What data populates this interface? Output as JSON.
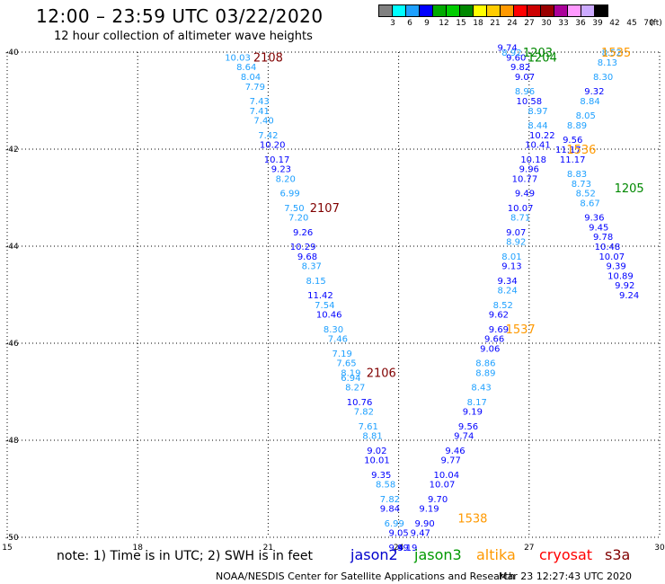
{
  "header": {
    "title": "12:00 – 23:59 UTC 03/22/2020",
    "subtitle": "12 hour collection of altimeter wave heights",
    "units": "(ft)"
  },
  "colorbar": {
    "colors": [
      "#808080",
      "#00ffff",
      "#1ea0ff",
      "#0000ff",
      "#00aa00",
      "#00cc00",
      "#008800",
      "#ffff00",
      "#ffcc00",
      "#ff9900",
      "#ff0000",
      "#cc0000",
      "#990000",
      "#aa0099",
      "#ff99ff",
      "#ccaaff",
      "#000000"
    ],
    "labels": [
      "3",
      "6",
      "9",
      "12",
      "15",
      "18",
      "21",
      "24",
      "27",
      "30",
      "33",
      "36",
      "39",
      "42",
      "45",
      "70"
    ]
  },
  "chart_data": {
    "type": "scatter",
    "xlim": [
      15,
      30
    ],
    "ylim": [
      -50,
      -40
    ],
    "x_ticks": [
      "15",
      "18",
      "21",
      "24",
      "27",
      "30"
    ],
    "y_ticks": [
      "-40",
      "-42",
      "-44",
      "-46",
      "-48",
      "-50"
    ],
    "grid": true,
    "tracks": [
      {
        "label": "2108",
        "satellite": "s3a",
        "color": "#800000",
        "x": 21,
        "y": -40.1
      },
      {
        "label": "2107",
        "satellite": "s3a",
        "color": "#800000",
        "x": 22.3,
        "y": -43.2
      },
      {
        "label": "2106",
        "satellite": "s3a",
        "color": "#800000",
        "x": 23.6,
        "y": -46.6
      },
      {
        "label": "1203",
        "satellite": "jason3",
        "color": "#008800",
        "x": 27.2,
        "y": -40.0
      },
      {
        "label": "1204",
        "satellite": "jason3",
        "color": "#008800",
        "x": 27.3,
        "y": -40.1
      },
      {
        "label": "1205",
        "satellite": "jason3",
        "color": "#008800",
        "x": 29.3,
        "y": -42.8
      },
      {
        "label": "1535",
        "satellite": "altika",
        "color": "#ff9900",
        "x": 29.0,
        "y": -40.0
      },
      {
        "label": "1536",
        "satellite": "altika",
        "color": "#ff9900",
        "x": 28.2,
        "y": -42.0
      },
      {
        "label": "1537",
        "satellite": "altika",
        "color": "#ff9900",
        "x": 26.8,
        "y": -45.7
      },
      {
        "label": "1538",
        "satellite": "altika",
        "color": "#ff9900",
        "x": 25.7,
        "y": -49.6
      }
    ],
    "points": [
      {
        "x": 20.3,
        "y": -40.1,
        "v": "10.03",
        "c": "#1ea0ff"
      },
      {
        "x": 20.5,
        "y": -40.3,
        "v": "8.64",
        "c": "#1ea0ff"
      },
      {
        "x": 20.6,
        "y": -40.5,
        "v": "8.04",
        "c": "#1ea0ff"
      },
      {
        "x": 20.7,
        "y": -40.7,
        "v": "7.79",
        "c": "#1ea0ff"
      },
      {
        "x": 20.8,
        "y": -41.0,
        "v": "7.43",
        "c": "#1ea0ff"
      },
      {
        "x": 20.8,
        "y": -41.2,
        "v": "7.41",
        "c": "#1ea0ff"
      },
      {
        "x": 20.9,
        "y": -41.4,
        "v": "7.40",
        "c": "#1ea0ff"
      },
      {
        "x": 21.0,
        "y": -41.7,
        "v": "7.42",
        "c": "#1ea0ff"
      },
      {
        "x": 21.1,
        "y": -41.9,
        "v": "10.20",
        "c": "#0000ff"
      },
      {
        "x": 21.2,
        "y": -42.2,
        "v": "10.17",
        "c": "#0000ff"
      },
      {
        "x": 21.3,
        "y": -42.4,
        "v": "9.23",
        "c": "#0000ff"
      },
      {
        "x": 21.4,
        "y": -42.6,
        "v": "8.20",
        "c": "#1ea0ff"
      },
      {
        "x": 21.5,
        "y": -42.9,
        "v": "6.99",
        "c": "#1ea0ff"
      },
      {
        "x": 21.6,
        "y": -43.2,
        "v": "7.50",
        "c": "#1ea0ff"
      },
      {
        "x": 21.7,
        "y": -43.4,
        "v": "7.20",
        "c": "#1ea0ff"
      },
      {
        "x": 21.8,
        "y": -43.7,
        "v": "9.26",
        "c": "#0000ff"
      },
      {
        "x": 21.8,
        "y": -44.0,
        "v": "10.29",
        "c": "#0000ff"
      },
      {
        "x": 21.9,
        "y": -44.2,
        "v": "9.68",
        "c": "#0000ff"
      },
      {
        "x": 22.0,
        "y": -44.4,
        "v": "8.37",
        "c": "#1ea0ff"
      },
      {
        "x": 22.1,
        "y": -44.7,
        "v": "8.15",
        "c": "#1ea0ff"
      },
      {
        "x": 22.2,
        "y": -45.0,
        "v": "11.42",
        "c": "#0000ff"
      },
      {
        "x": 22.3,
        "y": -45.2,
        "v": "7.54",
        "c": "#1ea0ff"
      },
      {
        "x": 22.4,
        "y": -45.4,
        "v": "10.46",
        "c": "#0000ff"
      },
      {
        "x": 22.5,
        "y": -45.7,
        "v": "8.30",
        "c": "#1ea0ff"
      },
      {
        "x": 22.6,
        "y": -45.9,
        "v": "7.46",
        "c": "#1ea0ff"
      },
      {
        "x": 22.7,
        "y": -46.2,
        "v": "7.19",
        "c": "#1ea0ff"
      },
      {
        "x": 22.8,
        "y": -46.4,
        "v": "7.65",
        "c": "#1ea0ff"
      },
      {
        "x": 22.9,
        "y": -46.6,
        "v": "8.19",
        "c": "#1ea0ff"
      },
      {
        "x": 22.9,
        "y": -46.7,
        "v": "6.94",
        "c": "#1ea0ff"
      },
      {
        "x": 23.0,
        "y": -46.9,
        "v": "8.27",
        "c": "#1ea0ff"
      },
      {
        "x": 23.1,
        "y": -47.2,
        "v": "10.76",
        "c": "#0000ff"
      },
      {
        "x": 23.2,
        "y": -47.4,
        "v": "7.82",
        "c": "#1ea0ff"
      },
      {
        "x": 23.3,
        "y": -47.7,
        "v": "7.61",
        "c": "#1ea0ff"
      },
      {
        "x": 23.4,
        "y": -47.9,
        "v": "8.81",
        "c": "#1ea0ff"
      },
      {
        "x": 23.5,
        "y": -48.2,
        "v": "9.02",
        "c": "#0000ff"
      },
      {
        "x": 23.5,
        "y": -48.4,
        "v": "10.01",
        "c": "#0000ff"
      },
      {
        "x": 23.6,
        "y": -48.7,
        "v": "9.35",
        "c": "#0000ff"
      },
      {
        "x": 23.7,
        "y": -48.9,
        "v": "8.58",
        "c": "#1ea0ff"
      },
      {
        "x": 23.8,
        "y": -49.2,
        "v": "7.82",
        "c": "#1ea0ff"
      },
      {
        "x": 23.8,
        "y": -49.4,
        "v": "9.84",
        "c": "#0000ff"
      },
      {
        "x": 23.9,
        "y": -49.7,
        "v": "6.99",
        "c": "#1ea0ff"
      },
      {
        "x": 24.0,
        "y": -49.9,
        "v": "9.05",
        "c": "#0000ff"
      },
      {
        "x": 24.0,
        "y": -50.2,
        "v": "9.49",
        "c": "#0000ff"
      },
      {
        "x": 24.2,
        "y": -50.2,
        "v": "9.19",
        "c": "#0000ff"
      },
      {
        "x": 24.5,
        "y": -49.9,
        "v": "9.47",
        "c": "#0000ff"
      },
      {
        "x": 24.6,
        "y": -49.7,
        "v": "9.90",
        "c": "#0000ff"
      },
      {
        "x": 24.7,
        "y": -49.4,
        "v": "9.19",
        "c": "#0000ff"
      },
      {
        "x": 24.9,
        "y": -49.2,
        "v": "9.70",
        "c": "#0000ff"
      },
      {
        "x": 25.0,
        "y": -48.9,
        "v": "10.07",
        "c": "#0000ff"
      },
      {
        "x": 25.1,
        "y": -48.7,
        "v": "10.04",
        "c": "#0000ff"
      },
      {
        "x": 25.2,
        "y": -48.4,
        "v": "9.77",
        "c": "#0000ff"
      },
      {
        "x": 25.3,
        "y": -48.2,
        "v": "9.46",
        "c": "#0000ff"
      },
      {
        "x": 25.5,
        "y": -47.9,
        "v": "9.74",
        "c": "#0000ff"
      },
      {
        "x": 25.6,
        "y": -47.7,
        "v": "9.56",
        "c": "#0000ff"
      },
      {
        "x": 25.7,
        "y": -47.4,
        "v": "9.19",
        "c": "#0000ff"
      },
      {
        "x": 25.8,
        "y": -47.2,
        "v": "8.17",
        "c": "#1ea0ff"
      },
      {
        "x": 25.9,
        "y": -46.9,
        "v": "8.43",
        "c": "#1ea0ff"
      },
      {
        "x": 26.0,
        "y": -46.6,
        "v": "8.89",
        "c": "#1ea0ff"
      },
      {
        "x": 26.0,
        "y": -46.4,
        "v": "8.86",
        "c": "#1ea0ff"
      },
      {
        "x": 26.1,
        "y": -46.1,
        "v": "9.06",
        "c": "#0000ff"
      },
      {
        "x": 26.2,
        "y": -45.9,
        "v": "9.66",
        "c": "#0000ff"
      },
      {
        "x": 26.3,
        "y": -45.7,
        "v": "9.69",
        "c": "#0000ff"
      },
      {
        "x": 26.3,
        "y": -45.4,
        "v": "9.62",
        "c": "#0000ff"
      },
      {
        "x": 26.4,
        "y": -45.2,
        "v": "8.52",
        "c": "#1ea0ff"
      },
      {
        "x": 26.5,
        "y": -44.9,
        "v": "8.24",
        "c": "#1ea0ff"
      },
      {
        "x": 26.5,
        "y": -44.7,
        "v": "9.34",
        "c": "#0000ff"
      },
      {
        "x": 26.6,
        "y": -44.4,
        "v": "9.13",
        "c": "#0000ff"
      },
      {
        "x": 26.6,
        "y": -44.2,
        "v": "8.01",
        "c": "#1ea0ff"
      },
      {
        "x": 26.7,
        "y": -43.9,
        "v": "8.92",
        "c": "#1ea0ff"
      },
      {
        "x": 26.7,
        "y": -43.7,
        "v": "9.07",
        "c": "#0000ff"
      },
      {
        "x": 26.8,
        "y": -43.4,
        "v": "8.71",
        "c": "#1ea0ff"
      },
      {
        "x": 26.8,
        "y": -43.2,
        "v": "10.07",
        "c": "#0000ff"
      },
      {
        "x": 26.9,
        "y": -42.9,
        "v": "9.49",
        "c": "#0000ff"
      },
      {
        "x": 26.9,
        "y": -42.6,
        "v": "10.77",
        "c": "#0000ff"
      },
      {
        "x": 27.0,
        "y": -42.4,
        "v": "9.96",
        "c": "#0000ff"
      },
      {
        "x": 27.1,
        "y": -42.2,
        "v": "10.18",
        "c": "#0000ff"
      },
      {
        "x": 27.2,
        "y": -41.9,
        "v": "10.41",
        "c": "#0000ff"
      },
      {
        "x": 27.3,
        "y": -41.7,
        "v": "10.22",
        "c": "#0000ff"
      },
      {
        "x": 27.2,
        "y": -41.5,
        "v": "8.44",
        "c": "#1ea0ff"
      },
      {
        "x": 27.2,
        "y": -41.2,
        "v": "8.97",
        "c": "#1ea0ff"
      },
      {
        "x": 27.0,
        "y": -41.0,
        "v": "10.58",
        "c": "#0000ff"
      },
      {
        "x": 26.9,
        "y": -40.8,
        "v": "8.96",
        "c": "#1ea0ff"
      },
      {
        "x": 26.9,
        "y": -40.5,
        "v": "9.07",
        "c": "#0000ff"
      },
      {
        "x": 26.8,
        "y": -40.3,
        "v": "9.82",
        "c": "#0000ff"
      },
      {
        "x": 26.7,
        "y": -40.1,
        "v": "9.60",
        "c": "#0000ff"
      },
      {
        "x": 26.6,
        "y": -40.0,
        "v": "8.92",
        "c": "#1ea0ff"
      },
      {
        "x": 26.5,
        "y": -39.9,
        "v": "9.74",
        "c": "#0000ff"
      },
      {
        "x": 28.9,
        "y": -40.0,
        "v": "8.52",
        "c": "#1ea0ff"
      },
      {
        "x": 28.8,
        "y": -40.2,
        "v": "8.13",
        "c": "#1ea0ff"
      },
      {
        "x": 28.7,
        "y": -40.5,
        "v": "8.30",
        "c": "#1ea0ff"
      },
      {
        "x": 28.5,
        "y": -40.8,
        "v": "9.32",
        "c": "#0000ff"
      },
      {
        "x": 28.4,
        "y": -41.0,
        "v": "8.84",
        "c": "#1ea0ff"
      },
      {
        "x": 28.3,
        "y": -41.3,
        "v": "8.05",
        "c": "#1ea0ff"
      },
      {
        "x": 28.1,
        "y": -41.5,
        "v": "8.89",
        "c": "#1ea0ff"
      },
      {
        "x": 28.0,
        "y": -41.8,
        "v": "9.56",
        "c": "#0000ff"
      },
      {
        "x": 27.9,
        "y": -42.0,
        "v": "11.17",
        "c": "#0000ff"
      },
      {
        "x": 28.0,
        "y": -42.2,
        "v": "11.17",
        "c": "#0000ff"
      },
      {
        "x": 28.1,
        "y": -42.5,
        "v": "8.83",
        "c": "#1ea0ff"
      },
      {
        "x": 28.2,
        "y": -42.7,
        "v": "8.73",
        "c": "#1ea0ff"
      },
      {
        "x": 28.3,
        "y": -42.9,
        "v": "8.52",
        "c": "#1ea0ff"
      },
      {
        "x": 28.4,
        "y": -43.1,
        "v": "8.67",
        "c": "#1ea0ff"
      },
      {
        "x": 28.5,
        "y": -43.4,
        "v": "9.36",
        "c": "#0000ff"
      },
      {
        "x": 28.6,
        "y": -43.6,
        "v": "9.45",
        "c": "#0000ff"
      },
      {
        "x": 28.7,
        "y": -43.8,
        "v": "9.78",
        "c": "#0000ff"
      },
      {
        "x": 28.8,
        "y": -44.0,
        "v": "10.48",
        "c": "#0000ff"
      },
      {
        "x": 28.9,
        "y": -44.2,
        "v": "10.07",
        "c": "#0000ff"
      },
      {
        "x": 29.0,
        "y": -44.4,
        "v": "9.39",
        "c": "#0000ff"
      },
      {
        "x": 29.1,
        "y": -44.6,
        "v": "10.89",
        "c": "#0000ff"
      },
      {
        "x": 29.2,
        "y": -44.8,
        "v": "9.92",
        "c": "#0000ff"
      },
      {
        "x": 29.3,
        "y": -45.0,
        "v": "9.24",
        "c": "#0000ff"
      }
    ]
  },
  "footer": {
    "note": "note:  1) Time is in UTC;  2) SWH is in feet",
    "satellites": [
      {
        "name": "jason2",
        "color": "#0000cc"
      },
      {
        "name": "jason3",
        "color": "#009900"
      },
      {
        "name": "altika",
        "color": "#ff9900"
      },
      {
        "name": "cryosat",
        "color": "#ff0000"
      },
      {
        "name": "s3a",
        "color": "#800000"
      }
    ],
    "credit": "NOAA/NESDIS Center for Satellite Applications and Research",
    "timestamp": "Mar 23 12:27:43 UTC 2020"
  }
}
